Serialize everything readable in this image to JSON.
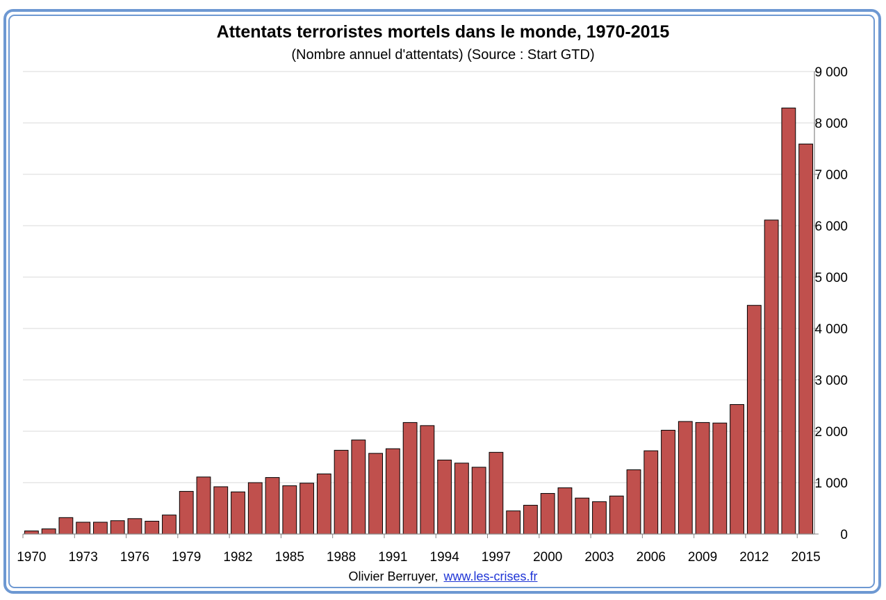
{
  "chart_data": {
    "type": "bar",
    "title": "Attentats terroristes mortels dans le monde, 1970-2015",
    "subtitle": "(Nombre annuel d'attentats) (Source : Start GTD)",
    "xlabel": "",
    "ylabel": "",
    "ylim": [
      0,
      9000
    ],
    "y_ticks": [
      0,
      1000,
      2000,
      3000,
      4000,
      5000,
      6000,
      7000,
      8000,
      9000
    ],
    "y_tick_labels": [
      "0",
      "1 000",
      "2 000",
      "3 000",
      "4 000",
      "5 000",
      "6 000",
      "7 000",
      "8 000",
      "9 000"
    ],
    "y_axis_side": "right",
    "grid": true,
    "legend": "none",
    "bar_color": "#c0504d",
    "categories": [
      1970,
      1971,
      1972,
      1973,
      1974,
      1975,
      1976,
      1977,
      1978,
      1979,
      1980,
      1981,
      1982,
      1983,
      1984,
      1985,
      1986,
      1987,
      1988,
      1989,
      1990,
      1991,
      1992,
      1993,
      1994,
      1995,
      1996,
      1997,
      1998,
      1999,
      2000,
      2001,
      2002,
      2003,
      2004,
      2005,
      2006,
      2007,
      2008,
      2009,
      2010,
      2011,
      2012,
      2013,
      2014,
      2015
    ],
    "x_tick_labels": [
      "1970",
      "1973",
      "1976",
      "1979",
      "1982",
      "1985",
      "1988",
      "1991",
      "1994",
      "1997",
      "2000",
      "2003",
      "2006",
      "2009",
      "2012",
      "2015"
    ],
    "values": [
      60,
      100,
      320,
      230,
      230,
      260,
      300,
      250,
      370,
      830,
      1110,
      920,
      820,
      1000,
      1100,
      940,
      990,
      1170,
      1630,
      1830,
      1570,
      1660,
      2170,
      2110,
      1440,
      1380,
      1300,
      1590,
      450,
      560,
      790,
      900,
      700,
      630,
      740,
      1250,
      1620,
      2020,
      2190,
      2170,
      2160,
      2520,
      4450,
      6110,
      8290,
      7590
    ]
  },
  "footer": {
    "author": "Olivier Berruyer,",
    "link": "www.les-crises.fr"
  }
}
